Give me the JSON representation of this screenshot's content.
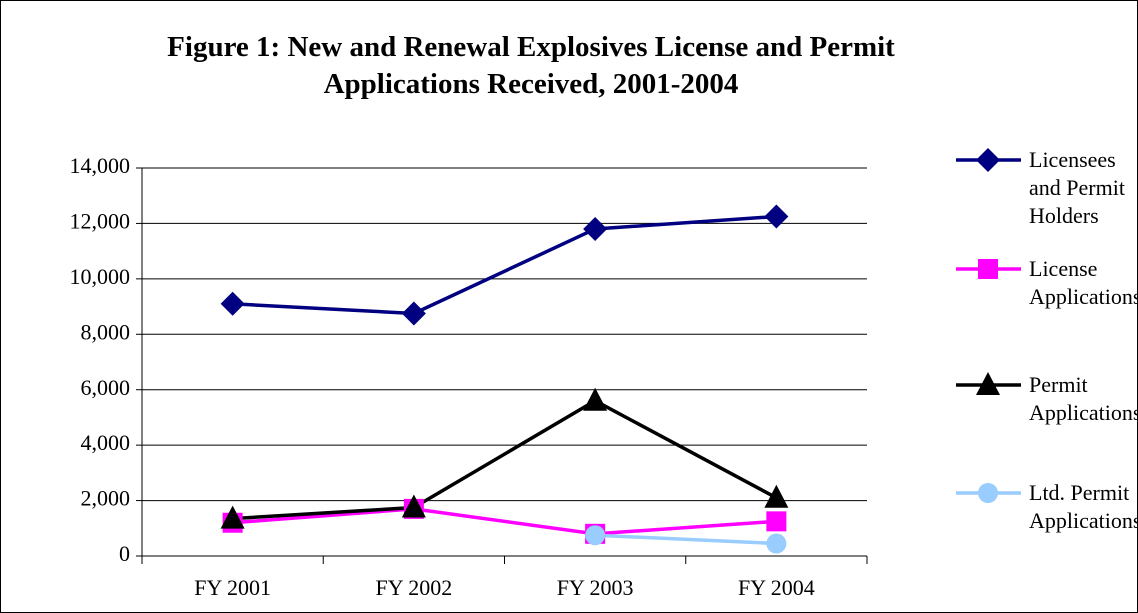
{
  "chart_data": {
    "type": "line",
    "title": "Figure 1: New and Renewal Explosives License and Permit Applications Received, 2001-2004",
    "categories": [
      "FY 2001",
      "FY 2002",
      "FY 2003",
      "FY 2004"
    ],
    "series": [
      {
        "name": "Licensees and Permit Holders",
        "color": "#000080",
        "marker": "diamond",
        "values": [
          9100,
          8750,
          11800,
          12250
        ]
      },
      {
        "name": "License Applications",
        "color": "#ff00ff",
        "marker": "square",
        "values": [
          1200,
          1700,
          800,
          1250
        ]
      },
      {
        "name": "Permit Applications",
        "color": "#000000",
        "marker": "triangle",
        "values": [
          1350,
          1750,
          5600,
          2100
        ]
      },
      {
        "name": "Ltd. Permit Applications",
        "color": "#99ccff",
        "marker": "circle",
        "values": [
          null,
          null,
          750,
          450
        ]
      }
    ],
    "ylim": [
      0,
      14000
    ],
    "yticks": [
      0,
      {
        "value": 2000,
        "label": "2,000"
      },
      {
        "value": 4000,
        "label": "4,000"
      },
      {
        "value": 6000,
        "label": "6,000"
      },
      {
        "value": 8000,
        "label": "8,000"
      },
      {
        "value": 10000,
        "label": "10,000"
      },
      {
        "value": 12000,
        "label": "12,000"
      },
      {
        "value": 14000,
        "label": "14,000"
      }
    ],
    "grid": true,
    "legend": "right"
  }
}
